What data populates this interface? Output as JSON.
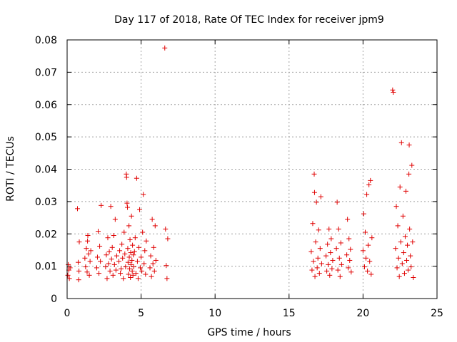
{
  "chart_data": {
    "type": "scatter",
    "title": "Day 117 of 2018, Rate Of TEC Index for receiver jpm9",
    "xlabel": "GPS time / hours",
    "ylabel": "ROTI / TECUs",
    "xlim": [
      0,
      25
    ],
    "ylim": [
      0,
      0.08
    ],
    "xticks": [
      0,
      5,
      10,
      15,
      20,
      25
    ],
    "xtick_labels": [
      "0",
      "5",
      "10",
      "15",
      "20",
      "25"
    ],
    "yticks": [
      0,
      0.01,
      0.02,
      0.03,
      0.04,
      0.05,
      0.06,
      0.07,
      0.08
    ],
    "ytick_labels": [
      "0",
      "0.01",
      "0.02",
      "0.03",
      "0.04",
      "0.05",
      "0.06",
      "0.07",
      "0.08"
    ],
    "grid": true,
    "marker": "+",
    "color": "#e00000",
    "series": [
      {
        "name": "ROTI",
        "points": [
          [
            0.05,
            0.0072
          ],
          [
            0.08,
            0.0105
          ],
          [
            0.12,
            0.0088
          ],
          [
            0.15,
            0.0062
          ],
          [
            0.2,
            0.0095
          ],
          [
            0.7,
            0.0278
          ],
          [
            0.75,
            0.0112
          ],
          [
            0.8,
            0.0085
          ],
          [
            0.78,
            0.0058
          ],
          [
            0.82,
            0.0175
          ],
          [
            1.2,
            0.0125
          ],
          [
            1.25,
            0.0098
          ],
          [
            1.3,
            0.0155
          ],
          [
            1.35,
            0.0082
          ],
          [
            1.4,
            0.0195
          ],
          [
            1.45,
            0.0138
          ],
          [
            1.5,
            0.0072
          ],
          [
            1.55,
            0.0115
          ],
          [
            1.6,
            0.0148
          ],
          [
            1.38,
            0.0178
          ],
          [
            2.0,
            0.0095
          ],
          [
            2.05,
            0.0128
          ],
          [
            2.1,
            0.0208
          ],
          [
            2.15,
            0.0078
          ],
          [
            2.2,
            0.0162
          ],
          [
            2.3,
            0.0288
          ],
          [
            2.25,
            0.0115
          ],
          [
            2.6,
            0.0098
          ],
          [
            2.65,
            0.0135
          ],
          [
            2.7,
            0.0062
          ],
          [
            2.75,
            0.0188
          ],
          [
            2.8,
            0.0108
          ],
          [
            2.85,
            0.0145
          ],
          [
            2.9,
            0.0085
          ],
          [
            2.95,
            0.0285
          ],
          [
            3.0,
            0.0122
          ],
          [
            3.05,
            0.0158
          ],
          [
            3.1,
            0.0072
          ],
          [
            3.15,
            0.0195
          ],
          [
            3.2,
            0.0105
          ],
          [
            3.25,
            0.0245
          ],
          [
            3.3,
            0.0088
          ],
          [
            3.35,
            0.0132
          ],
          [
            3.5,
            0.0115
          ],
          [
            3.55,
            0.0148
          ],
          [
            3.6,
            0.0078
          ],
          [
            3.65,
            0.0092
          ],
          [
            3.7,
            0.0168
          ],
          [
            3.75,
            0.0125
          ],
          [
            3.8,
            0.0062
          ],
          [
            3.85,
            0.0205
          ],
          [
            3.9,
            0.0138
          ],
          [
            3.95,
            0.0098
          ],
          [
            4.0,
            0.0385
          ],
          [
            4.02,
            0.0375
          ],
          [
            4.05,
            0.0295
          ],
          [
            4.08,
            0.0282
          ],
          [
            4.1,
            0.0155
          ],
          [
            4.12,
            0.0112
          ],
          [
            4.15,
            0.0075
          ],
          [
            4.18,
            0.0225
          ],
          [
            4.2,
            0.0128
          ],
          [
            4.22,
            0.0092
          ],
          [
            4.25,
            0.0182
          ],
          [
            4.28,
            0.0065
          ],
          [
            4.3,
            0.0142
          ],
          [
            4.32,
            0.0105
          ],
          [
            4.35,
            0.0255
          ],
          [
            4.38,
            0.0118
          ],
          [
            4.4,
            0.0085
          ],
          [
            4.42,
            0.0165
          ],
          [
            4.45,
            0.0072
          ],
          [
            4.48,
            0.0135
          ],
          [
            4.5,
            0.0098
          ],
          [
            4.55,
            0.0145
          ],
          [
            4.6,
            0.0188
          ],
          [
            4.65,
            0.0078
          ],
          [
            4.7,
            0.0372
          ],
          [
            4.75,
            0.0115
          ],
          [
            4.8,
            0.0062
          ],
          [
            4.85,
            0.0158
          ],
          [
            4.9,
            0.0275
          ],
          [
            4.95,
            0.0095
          ],
          [
            5.0,
            0.0128
          ],
          [
            5.05,
            0.0085
          ],
          [
            5.1,
            0.0205
          ],
          [
            5.15,
            0.0322
          ],
          [
            5.2,
            0.0108
          ],
          [
            5.25,
            0.0148
          ],
          [
            5.3,
            0.0075
          ],
          [
            5.35,
            0.0178
          ],
          [
            5.6,
            0.0095
          ],
          [
            5.65,
            0.0132
          ],
          [
            5.7,
            0.0068
          ],
          [
            5.75,
            0.0245
          ],
          [
            5.8,
            0.0108
          ],
          [
            5.85,
            0.0158
          ],
          [
            5.9,
            0.0085
          ],
          [
            5.95,
            0.0225
          ],
          [
            6.0,
            0.0118
          ],
          [
            6.6,
            0.0775
          ],
          [
            6.65,
            0.0215
          ],
          [
            6.7,
            0.0102
          ],
          [
            6.75,
            0.0062
          ],
          [
            6.8,
            0.0185
          ],
          [
            16.5,
            0.0145
          ],
          [
            16.55,
            0.0088
          ],
          [
            16.6,
            0.0232
          ],
          [
            16.65,
            0.0115
          ],
          [
            16.7,
            0.0385
          ],
          [
            16.72,
            0.0328
          ],
          [
            16.75,
            0.0068
          ],
          [
            16.8,
            0.0175
          ],
          [
            16.85,
            0.0298
          ],
          [
            16.9,
            0.0095
          ],
          [
            16.95,
            0.0125
          ],
          [
            17.0,
            0.0212
          ],
          [
            17.05,
            0.0078
          ],
          [
            17.1,
            0.0155
          ],
          [
            17.15,
            0.0315
          ],
          [
            17.2,
            0.0108
          ],
          [
            17.5,
            0.0132
          ],
          [
            17.55,
            0.0085
          ],
          [
            17.6,
            0.0168
          ],
          [
            17.65,
            0.0105
          ],
          [
            17.7,
            0.0215
          ],
          [
            17.75,
            0.0072
          ],
          [
            17.8,
            0.0142
          ],
          [
            17.85,
            0.0185
          ],
          [
            17.9,
            0.0092
          ],
          [
            17.95,
            0.0118
          ],
          [
            18.2,
            0.0155
          ],
          [
            18.25,
            0.0298
          ],
          [
            18.3,
            0.0088
          ],
          [
            18.35,
            0.0215
          ],
          [
            18.4,
            0.0125
          ],
          [
            18.45,
            0.0068
          ],
          [
            18.5,
            0.0172
          ],
          [
            18.55,
            0.0105
          ],
          [
            18.9,
            0.0135
          ],
          [
            18.95,
            0.0245
          ],
          [
            19.0,
            0.0095
          ],
          [
            19.05,
            0.0185
          ],
          [
            19.1,
            0.0118
          ],
          [
            19.15,
            0.0152
          ],
          [
            19.2,
            0.0082
          ],
          [
            20.0,
            0.0148
          ],
          [
            20.05,
            0.0262
          ],
          [
            20.1,
            0.0098
          ],
          [
            20.15,
            0.0205
          ],
          [
            20.2,
            0.0125
          ],
          [
            20.25,
            0.0322
          ],
          [
            20.3,
            0.0085
          ],
          [
            20.35,
            0.0165
          ],
          [
            20.4,
            0.0352
          ],
          [
            20.45,
            0.0115
          ],
          [
            20.5,
            0.0365
          ],
          [
            20.55,
            0.0075
          ],
          [
            20.6,
            0.0188
          ],
          [
            22.0,
            0.0645
          ],
          [
            22.05,
            0.0638
          ],
          [
            22.2,
            0.0155
          ],
          [
            22.25,
            0.0285
          ],
          [
            22.3,
            0.0095
          ],
          [
            22.35,
            0.0225
          ],
          [
            22.4,
            0.0125
          ],
          [
            22.45,
            0.0068
          ],
          [
            22.5,
            0.0345
          ],
          [
            22.55,
            0.0175
          ],
          [
            22.6,
            0.0482
          ],
          [
            22.65,
            0.0108
          ],
          [
            22.7,
            0.0255
          ],
          [
            22.75,
            0.0142
          ],
          [
            22.8,
            0.0078
          ],
          [
            22.85,
            0.0192
          ],
          [
            22.9,
            0.0332
          ],
          [
            22.95,
            0.0118
          ],
          [
            23.0,
            0.0165
          ],
          [
            23.05,
            0.0088
          ],
          [
            23.1,
            0.0385
          ],
          [
            23.12,
            0.0475
          ],
          [
            23.15,
            0.0215
          ],
          [
            23.2,
            0.0132
          ],
          [
            23.25,
            0.0098
          ],
          [
            23.3,
            0.0412
          ],
          [
            23.35,
            0.0175
          ],
          [
            23.4,
            0.0065
          ]
        ]
      }
    ]
  }
}
